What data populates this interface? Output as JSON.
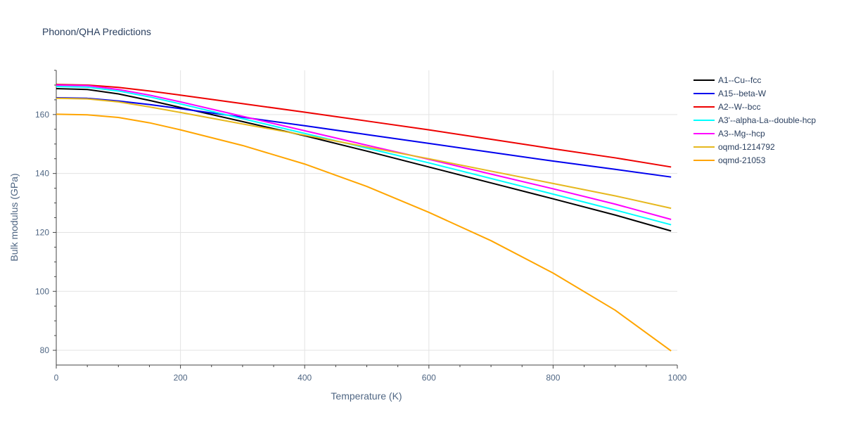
{
  "chart_data": {
    "type": "line",
    "title": "Phonon/QHA Predictions",
    "xlabel": "Temperature (K)",
    "ylabel": "Bulk modulus (GPa)",
    "xlim": [
      0,
      1000
    ],
    "ylim": [
      75,
      175
    ],
    "xticks": [
      0,
      200,
      400,
      600,
      800,
      1000
    ],
    "yticks": [
      80,
      100,
      120,
      140,
      160
    ],
    "grid": true,
    "legend_position": "right",
    "x": [
      0,
      50,
      100,
      150,
      200,
      300,
      400,
      500,
      600,
      700,
      800,
      900,
      990
    ],
    "series": [
      {
        "name": "A1--Cu--fcc",
        "color": "#000000",
        "values": [
          168.8,
          168.5,
          167.0,
          164.8,
          162.4,
          157.6,
          152.8,
          147.6,
          142.2,
          136.8,
          131.4,
          125.9,
          120.5
        ]
      },
      {
        "name": "A15--beta-W",
        "color": "#0000ee",
        "values": [
          165.7,
          165.5,
          164.6,
          163.4,
          162.0,
          159.1,
          156.2,
          153.2,
          150.2,
          147.2,
          144.2,
          141.4,
          138.8
        ]
      },
      {
        "name": "A2--W--bcc",
        "color": "#ee0000",
        "values": [
          170.2,
          170.0,
          169.2,
          168.0,
          166.6,
          163.7,
          160.8,
          157.8,
          154.8,
          151.6,
          148.4,
          145.3,
          142.2
        ]
      },
      {
        "name": "A3'--alpha-La--double-hcp",
        "color": "#00ffff",
        "values": [
          169.5,
          169.3,
          168.0,
          166.0,
          163.6,
          158.6,
          153.6,
          148.6,
          143.6,
          138.3,
          133.0,
          127.6,
          122.6
        ]
      },
      {
        "name": "A3--Mg--hcp",
        "color": "#ff00ff",
        "values": [
          170.0,
          169.8,
          168.5,
          166.6,
          164.3,
          159.4,
          154.5,
          149.6,
          144.8,
          139.8,
          134.8,
          129.6,
          124.4
        ]
      },
      {
        "name": "oqmd-1214792",
        "color": "#e6b81e",
        "values": [
          165.5,
          165.3,
          164.3,
          162.6,
          160.7,
          156.8,
          153.0,
          149.0,
          145.0,
          140.8,
          136.6,
          132.4,
          128.2
        ]
      },
      {
        "name": "oqmd-21053",
        "color": "#ffa500",
        "values": [
          160.1,
          159.9,
          159.0,
          157.2,
          154.8,
          149.5,
          143.2,
          135.6,
          126.8,
          117.2,
          106.2,
          93.6,
          79.8
        ]
      }
    ]
  }
}
